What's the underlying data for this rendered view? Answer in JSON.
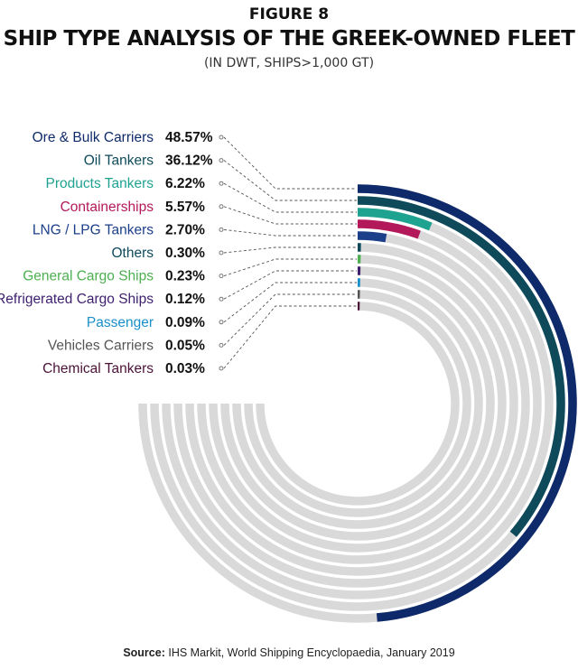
{
  "figure_label": "FIGURE 8",
  "chart_data": {
    "type": "radial-bar",
    "title": "SHIP TYPE ANALYSIS OF THE GREEK-OWNED FLEET",
    "subtitle": "(IN DWT, SHIPS>1,000 GT)",
    "unit": "%",
    "max_value": 100,
    "series": [
      {
        "name": "Ore & Bulk Carriers",
        "value": 48.57,
        "label": "48.57%",
        "color": "#0f2a6b"
      },
      {
        "name": "Oil Tankers",
        "value": 36.12,
        "label": "36.12%",
        "color": "#0e4a5a"
      },
      {
        "name": "Products Tankers",
        "value": 6.22,
        "label": "6.22%",
        "color": "#1fa391"
      },
      {
        "name": "Containerships",
        "value": 5.57,
        "label": "5.57%",
        "color": "#b3195a"
      },
      {
        "name": "LNG / LPG Tankers",
        "value": 2.7,
        "label": "2.70%",
        "color": "#1c3f8a"
      },
      {
        "name": "Others",
        "value": 0.3,
        "label": "0.30%",
        "color": "#0e4a5a"
      },
      {
        "name": "General Cargo Ships",
        "value": 0.23,
        "label": "0.23%",
        "color": "#4caf50"
      },
      {
        "name": "Refrigerated Cargo Ships",
        "value": 0.12,
        "label": "0.12%",
        "color": "#3d1f6e"
      },
      {
        "name": "Passenger",
        "value": 0.09,
        "label": "0.09%",
        "color": "#1a8fc9"
      },
      {
        "name": "Vehicles Carriers",
        "value": 0.05,
        "label": "0.05%",
        "color": "#555555"
      },
      {
        "name": "Chemical Tankers",
        "value": 0.03,
        "label": "0.03%",
        "color": "#4a1238"
      }
    ],
    "track_color": "#d9d9da"
  },
  "source": {
    "prefix": "Source:",
    "text": "IHS Markit, World Shipping Encyclopaedia, January 2019"
  }
}
